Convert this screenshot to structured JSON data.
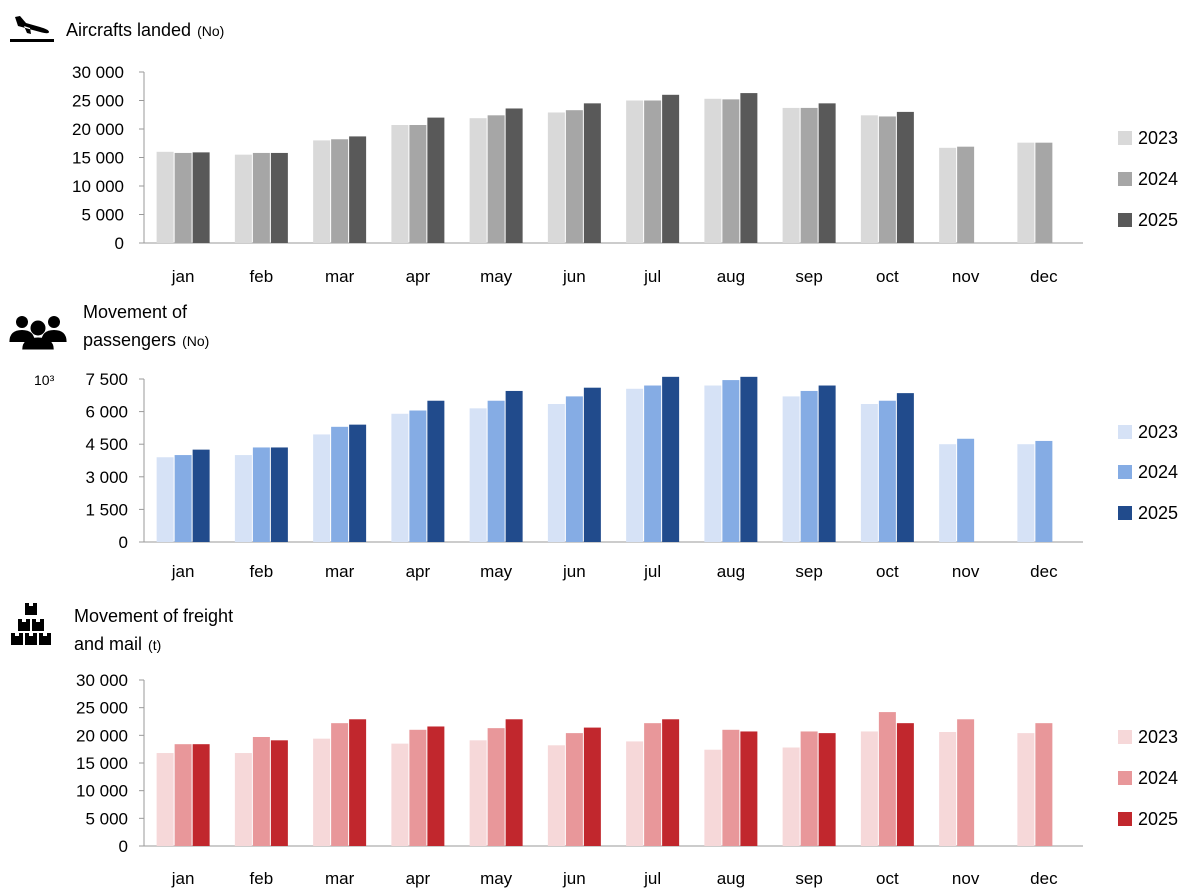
{
  "chart_data": [
    {
      "type": "bar",
      "icon": "airplane-landing-icon",
      "title_lines": [
        "Aircrafts landed"
      ],
      "unit": "(No)",
      "categories": [
        "jan",
        "feb",
        "mar",
        "apr",
        "may",
        "jun",
        "jul",
        "aug",
        "sep",
        "oct",
        "nov",
        "dec"
      ],
      "ylim": [
        0,
        30000
      ],
      "yticks": [
        "0",
        "5 000",
        "10 000",
        "15 000",
        "20 000",
        "25 000",
        "30 000"
      ],
      "grid": false,
      "legend_position": "right",
      "series": [
        {
          "name": "2023",
          "color": "#d9d9d9",
          "values": [
            16000,
            15500,
            18000,
            20700,
            21900,
            22900,
            25000,
            25300,
            23700,
            22400,
            16700,
            17600
          ]
        },
        {
          "name": "2024",
          "color": "#a6a6a6",
          "values": [
            15800,
            15800,
            18200,
            20700,
            22400,
            23300,
            25000,
            25200,
            23700,
            22200,
            16900,
            17600
          ]
        },
        {
          "name": "2025",
          "color": "#595959",
          "values": [
            15900,
            15800,
            18700,
            22000,
            23600,
            24500,
            26000,
            26300,
            24500,
            23000,
            null,
            null
          ]
        }
      ]
    },
    {
      "type": "bar",
      "icon": "people-icon",
      "title_lines": [
        "Movement of",
        "passengers"
      ],
      "unit": "(No)",
      "axis_multiplier": "10³",
      "categories": [
        "jan",
        "feb",
        "mar",
        "apr",
        "may",
        "jun",
        "jul",
        "aug",
        "sep",
        "oct",
        "nov",
        "dec"
      ],
      "ylim": [
        0,
        7500
      ],
      "yticks": [
        "0",
        "1 500",
        "3 000",
        "4 500",
        "6 000",
        "7 500"
      ],
      "grid": false,
      "legend_position": "right",
      "series": [
        {
          "name": "2023",
          "color": "#d6e2f6",
          "values": [
            3900,
            4000,
            4950,
            5900,
            6150,
            6350,
            7050,
            7200,
            6700,
            6350,
            4500,
            4500
          ]
        },
        {
          "name": "2024",
          "color": "#85ace4",
          "values": [
            4000,
            4350,
            5300,
            6050,
            6500,
            6700,
            7200,
            7450,
            6950,
            6500,
            4750,
            4650
          ]
        },
        {
          "name": "2025",
          "color": "#214b8c",
          "values": [
            4250,
            4350,
            5400,
            6500,
            6950,
            7100,
            7600,
            7600,
            7200,
            6850,
            null,
            null
          ]
        }
      ]
    },
    {
      "type": "bar",
      "icon": "boxes-icon",
      "title_lines": [
        "Movement of freight",
        "and mail"
      ],
      "unit": "(t)",
      "categories": [
        "jan",
        "feb",
        "mar",
        "apr",
        "may",
        "jun",
        "jul",
        "aug",
        "sep",
        "oct",
        "nov",
        "dec"
      ],
      "ylim": [
        0,
        30000
      ],
      "yticks": [
        "0",
        "5 000",
        "10 000",
        "15 000",
        "20 000",
        "25 000",
        "30 000"
      ],
      "grid": false,
      "legend_position": "right",
      "series": [
        {
          "name": "2023",
          "color": "#f6d8d9",
          "values": [
            16800,
            16800,
            19400,
            18500,
            19100,
            18200,
            18900,
            17400,
            17800,
            20700,
            20600,
            20400
          ]
        },
        {
          "name": "2024",
          "color": "#e8979a",
          "values": [
            18400,
            19700,
            22200,
            21000,
            21300,
            20400,
            22200,
            21000,
            20700,
            24200,
            22900,
            22200
          ]
        },
        {
          "name": "2025",
          "color": "#c1272d",
          "values": [
            18400,
            19100,
            22900,
            21600,
            22900,
            21400,
            22900,
            20700,
            20400,
            22200,
            null,
            null
          ]
        }
      ]
    }
  ]
}
